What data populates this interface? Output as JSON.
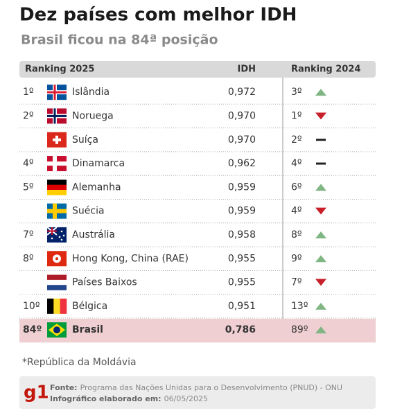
{
  "header": {
    "title": "Dez países com melhor IDH",
    "subtitle": "Brasil ficou na 84ª posição"
  },
  "table": {
    "columns": [
      "Ranking 2025",
      "IDH",
      "Ranking 2024"
    ],
    "rows": [
      {
        "rank_2025": "1º",
        "country": "Islândia",
        "idh": "0,972",
        "rank_2024": "3º",
        "trend": "up"
      },
      {
        "rank_2025": "2º",
        "country": "Noruega",
        "idh": "0,970",
        "rank_2024": "1º",
        "trend": "down"
      },
      {
        "rank_2025": null,
        "country": "Suíça",
        "idh": "0,970",
        "rank_2024": "2º",
        "trend": "same"
      },
      {
        "rank_2025": "4º",
        "country": "Dinamarca",
        "idh": "0,962",
        "rank_2024": "4º",
        "trend": "same"
      },
      {
        "rank_2025": "5º",
        "country": "Alemanha",
        "idh": "0,959",
        "rank_2024": "6º",
        "trend": "up"
      },
      {
        "rank_2025": null,
        "country": "Suécia",
        "idh": "0,959",
        "rank_2024": "4º",
        "trend": "down"
      },
      {
        "rank_2025": "7º",
        "country": "Austrália",
        "idh": "0,958",
        "rank_2024": "8º",
        "trend": "up"
      },
      {
        "rank_2025": "8º",
        "country": "Hong Kong, China (RAE)",
        "idh": "0,955",
        "rank_2024": "9º",
        "trend": "up"
      },
      {
        "rank_2025": null,
        "country": "Países Baixos",
        "idh": "0,955",
        "rank_2024": "7º",
        "trend": "down"
      },
      {
        "rank_2025": "10º",
        "country": "Bélgica",
        "idh": "0,951",
        "rank_2024": "13º",
        "trend": "up"
      },
      {
        "rank_2025": "84º",
        "country": "Brasil",
        "idh": "0,786",
        "rank_2024": "89º",
        "trend": "up",
        "highlight": true
      }
    ]
  },
  "footnote": "*República da Moldávia",
  "footer": {
    "logo": "g1",
    "source_label": "Fonte:",
    "source": "Programa das Nações Unidas para o Desenvolvimento (PNUD) - ONU",
    "date_label": "Infográfico elaborado em:",
    "date": "06/05/2025"
  }
}
